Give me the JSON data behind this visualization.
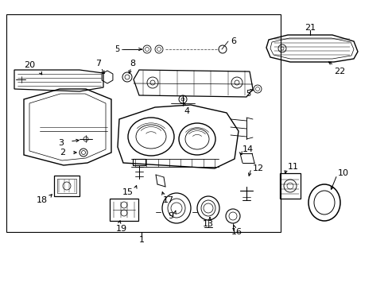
{
  "background_color": "#ffffff",
  "border_color": "#000000",
  "line_color": "#000000",
  "fig_width": 4.89,
  "fig_height": 3.6,
  "dpi": 100,
  "font_size": 7.5
}
